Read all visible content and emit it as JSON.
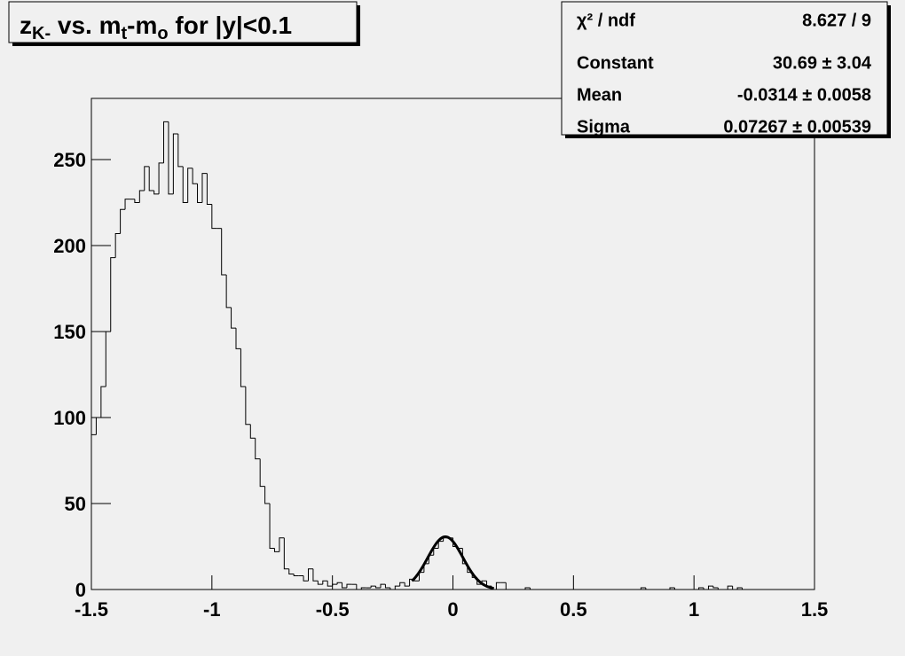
{
  "chart_data": {
    "type": "histogram",
    "title_parts": [
      {
        "text": "z"
      },
      {
        "text": "K-",
        "sub": true
      },
      {
        "text": " vs. m"
      },
      {
        "text": "t",
        "sub": true
      },
      {
        "text": "-m"
      },
      {
        "text": "o",
        "sub": true
      },
      {
        "text": " for |y|<0.1"
      }
    ],
    "bins": [
      -1.5,
      -1.48,
      -1.46,
      -1.44,
      -1.42,
      -1.4,
      -1.38,
      -1.36,
      -1.34,
      -1.32,
      -1.3,
      -1.28,
      -1.26,
      -1.24,
      -1.22,
      -1.2,
      -1.18,
      -1.16,
      -1.14,
      -1.12,
      -1.1,
      -1.08,
      -1.06,
      -1.04,
      -1.02,
      -1,
      -0.98,
      -0.96,
      -0.94,
      -0.92,
      -0.9,
      -0.88,
      -0.86,
      -0.84,
      -0.82,
      -0.8,
      -0.78,
      -0.76,
      -0.74,
      -0.72,
      -0.7,
      -0.68,
      -0.66,
      -0.64,
      -0.62,
      -0.6,
      -0.58,
      -0.56,
      -0.54,
      -0.52,
      -0.5,
      -0.48,
      -0.46,
      -0.44,
      -0.42,
      -0.4,
      -0.38,
      -0.36,
      -0.34,
      -0.32,
      -0.3,
      -0.28,
      -0.26,
      -0.24,
      -0.22,
      -0.2,
      -0.18,
      -0.16,
      -0.14,
      -0.12,
      -0.1,
      -0.08,
      -0.06,
      -0.04,
      -0.02,
      0,
      0.02,
      0.04,
      0.06,
      0.08,
      0.1,
      0.12,
      0.14,
      0.16,
      0.18,
      0.2,
      0.22,
      0.24,
      0.26,
      0.28,
      0.3,
      0.32,
      0.34,
      0.36,
      0.38,
      0.4,
      0.42,
      0.44,
      0.46,
      0.48,
      0.5,
      0.52,
      0.54,
      0.56,
      0.58,
      0.6,
      0.62,
      0.64,
      0.66,
      0.68,
      0.7,
      0.72,
      0.74,
      0.76,
      0.78,
      0.8,
      0.82,
      0.84,
      0.86,
      0.88,
      0.9,
      0.92,
      0.94,
      0.96,
      0.98,
      1,
      1.02,
      1.04,
      1.06,
      1.08,
      1.1,
      1.12,
      1.14,
      1.16,
      1.18,
      1.2,
      1.22,
      1.24,
      1.26,
      1.28,
      1.3,
      1.32,
      1.34,
      1.36,
      1.38,
      1.4,
      1.42,
      1.44,
      1.46,
      1.48,
      1.5
    ],
    "values": [
      90,
      100,
      118,
      150,
      193,
      207,
      221,
      227,
      227,
      225,
      232,
      246,
      232,
      230,
      248,
      272,
      230,
      265,
      246,
      225,
      245,
      236,
      225,
      242,
      224,
      210,
      210,
      183,
      164,
      152,
      140,
      118,
      96,
      88,
      76,
      60,
      50,
      24,
      22,
      30,
      12,
      9,
      8,
      8,
      5,
      12,
      5,
      3,
      5,
      2,
      3,
      4,
      1,
      3,
      3,
      0,
      1,
      1,
      2,
      1,
      3,
      1,
      0,
      2,
      4,
      2,
      6,
      5,
      10,
      15,
      20,
      24,
      28,
      30,
      30,
      25,
      24,
      15,
      10,
      7,
      3,
      5,
      2,
      0,
      4,
      4,
      0,
      0,
      0,
      0,
      1,
      0,
      0,
      0,
      0,
      0,
      0,
      0,
      0,
      0,
      0,
      0,
      0,
      0,
      0,
      0,
      0,
      0,
      0,
      0,
      0,
      0,
      0,
      0,
      1,
      0,
      0,
      0,
      0,
      0,
      1,
      0,
      0,
      0,
      0,
      0,
      1,
      0,
      2,
      1,
      0,
      0,
      2,
      0,
      1,
      0,
      0,
      0,
      0,
      0,
      0,
      0,
      0,
      0,
      0,
      0,
      0,
      0,
      0,
      0
    ],
    "color": "#000000",
    "fit": {
      "constant": 30.69,
      "mean": -0.0314,
      "sigma": 0.07267,
      "xrange": [
        -0.17,
        0.17
      ],
      "color": "#000000"
    },
    "stats": [
      {
        "label": "χ² / ndf",
        "value": "8.627 / 9"
      },
      {
        "label": "Constant",
        "value": "30.69 ± 3.04"
      },
      {
        "label": "Mean",
        "value": "-0.0314 ± 0.0058"
      },
      {
        "label": "Sigma",
        "value": "0.07267 ± 0.00539"
      }
    ],
    "xlim": [
      -1.5,
      1.5
    ],
    "xticks": [
      -1.5,
      -1,
      -0.5,
      0,
      0.5,
      1,
      1.5
    ],
    "ylim": [
      0,
      285.6
    ],
    "yticks": [
      0,
      50,
      100,
      150,
      200,
      250
    ]
  }
}
